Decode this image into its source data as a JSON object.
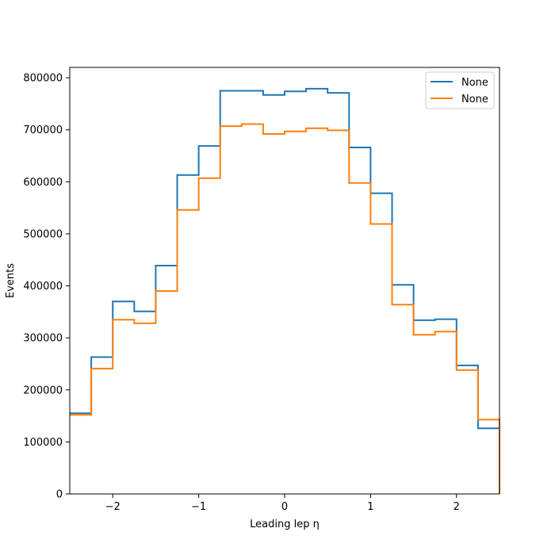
{
  "chart_data": {
    "type": "histogram-step",
    "title": "",
    "xlabel": "Leading lep η",
    "ylabel": "Events",
    "xlim": [
      -2.5,
      2.5
    ],
    "ylim": [
      0,
      820000
    ],
    "bin_edges": [
      -2.5,
      -2.25,
      -2.0,
      -1.75,
      -1.5,
      -1.25,
      -1.0,
      -0.75,
      -0.5,
      -0.25,
      0.0,
      0.25,
      0.5,
      0.75,
      1.0,
      1.25,
      1.5,
      1.75,
      2.0,
      2.25,
      2.5
    ],
    "xticks": [
      -2,
      -1,
      0,
      1,
      2
    ],
    "xtick_labels": [
      "−2",
      "−1",
      "0",
      "1",
      "2"
    ],
    "yticks": [
      0,
      100000,
      200000,
      300000,
      400000,
      500000,
      600000,
      700000,
      800000
    ],
    "ytick_labels": [
      "0",
      "100000",
      "200000",
      "300000",
      "400000",
      "500000",
      "600000",
      "700000",
      "800000"
    ],
    "grid": false,
    "legend_position": "top-right",
    "series": [
      {
        "name": "None",
        "color": "#1f77b4",
        "values": [
          155000,
          263000,
          370000,
          351000,
          439000,
          613000,
          669000,
          775000,
          775000,
          767000,
          774000,
          779000,
          771000,
          666000,
          578000,
          402000,
          334000,
          336000,
          247000,
          126000
        ]
      },
      {
        "name": "None",
        "color": "#ff7f0e",
        "values": [
          152000,
          241000,
          335000,
          328000,
          390000,
          546000,
          607000,
          707000,
          711000,
          692000,
          697000,
          703000,
          699000,
          598000,
          519000,
          364000,
          306000,
          312000,
          238000,
          143000
        ]
      }
    ]
  }
}
